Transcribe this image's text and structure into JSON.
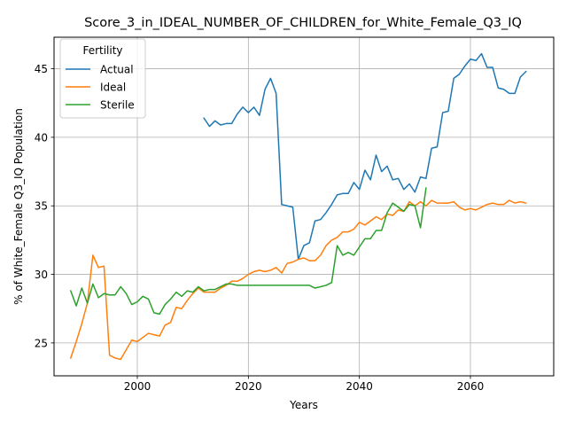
{
  "chart_data": {
    "type": "line",
    "title": "Score_3_in_IDEAL_NUMBER_OF_CHILDREN_for_White_Female_Q3_IQ",
    "xlabel": "Years",
    "ylabel": "% of White_Female Q3_IQ Population",
    "xlim": [
      1985,
      2075
    ],
    "ylim": [
      22.6,
      47.3
    ],
    "x_ticks": [
      2000,
      2020,
      2040,
      2060
    ],
    "y_ticks": [
      25,
      30,
      35,
      40,
      45
    ],
    "grid": true,
    "legend": {
      "title": "Fertility",
      "placement": "top-left"
    },
    "series": [
      {
        "name": "Actual",
        "color": "#1f77b4",
        "points": [
          [
            2012,
            41.4
          ],
          [
            2013,
            40.8
          ],
          [
            2014,
            41.2
          ],
          [
            2015,
            40.9
          ],
          [
            2016,
            41.0
          ],
          [
            2017,
            41.0
          ],
          [
            2018,
            41.7
          ],
          [
            2019,
            42.2
          ],
          [
            2020,
            41.8
          ],
          [
            2021,
            42.2
          ],
          [
            2022,
            41.6
          ],
          [
            2023,
            43.5
          ],
          [
            2024,
            44.3
          ],
          [
            2025,
            43.2
          ],
          [
            2026,
            35.1
          ],
          [
            2027,
            35.0
          ],
          [
            2028,
            34.9
          ],
          [
            2029,
            31.1
          ],
          [
            2030,
            32.1
          ],
          [
            2031,
            32.3
          ],
          [
            2032,
            33.9
          ],
          [
            2033,
            34.0
          ],
          [
            2034,
            34.5
          ],
          [
            2035,
            35.1
          ],
          [
            2036,
            35.8
          ],
          [
            2037,
            35.9
          ],
          [
            2038,
            35.9
          ],
          [
            2039,
            36.7
          ],
          [
            2040,
            36.2
          ],
          [
            2041,
            37.6
          ],
          [
            2042,
            36.9
          ],
          [
            2043,
            38.7
          ],
          [
            2044,
            37.5
          ],
          [
            2045,
            37.9
          ],
          [
            2046,
            36.9
          ],
          [
            2047,
            37.0
          ],
          [
            2048,
            36.2
          ],
          [
            2049,
            36.6
          ],
          [
            2050,
            36.0
          ],
          [
            2051,
            37.1
          ],
          [
            2052,
            37.0
          ],
          [
            2053,
            39.2
          ],
          [
            2054,
            39.3
          ],
          [
            2055,
            41.8
          ],
          [
            2056,
            41.9
          ],
          [
            2057,
            44.3
          ],
          [
            2058,
            44.6
          ],
          [
            2059,
            45.2
          ],
          [
            2060,
            45.7
          ],
          [
            2061,
            45.6
          ],
          [
            2062,
            46.1
          ],
          [
            2063,
            45.1
          ],
          [
            2064,
            45.1
          ],
          [
            2065,
            43.6
          ],
          [
            2066,
            43.5
          ],
          [
            2067,
            43.2
          ],
          [
            2068,
            43.2
          ],
          [
            2069,
            44.4
          ],
          [
            2070,
            44.8
          ]
        ]
      },
      {
        "name": "Ideal",
        "color": "#ff7f0e",
        "points": [
          [
            1988,
            23.9
          ],
          [
            1989,
            25.1
          ],
          [
            1990,
            26.4
          ],
          [
            1991,
            27.9
          ],
          [
            1992,
            31.4
          ],
          [
            1993,
            30.5
          ],
          [
            1994,
            30.6
          ],
          [
            1995,
            24.1
          ],
          [
            1996,
            23.9
          ],
          [
            1997,
            23.8
          ],
          [
            1998,
            24.5
          ],
          [
            1999,
            25.2
          ],
          [
            2000,
            25.1
          ],
          [
            2001,
            25.4
          ],
          [
            2002,
            25.7
          ],
          [
            2003,
            25.6
          ],
          [
            2004,
            25.5
          ],
          [
            2005,
            26.3
          ],
          [
            2006,
            26.5
          ],
          [
            2007,
            27.6
          ],
          [
            2008,
            27.5
          ],
          [
            2009,
            28.1
          ],
          [
            2010,
            28.6
          ],
          [
            2011,
            29.0
          ],
          [
            2012,
            28.7
          ],
          [
            2013,
            28.7
          ],
          [
            2014,
            28.7
          ],
          [
            2015,
            29.0
          ],
          [
            2016,
            29.2
          ],
          [
            2017,
            29.5
          ],
          [
            2018,
            29.5
          ],
          [
            2019,
            29.7
          ],
          [
            2020,
            30.0
          ],
          [
            2021,
            30.2
          ],
          [
            2022,
            30.3
          ],
          [
            2023,
            30.2
          ],
          [
            2024,
            30.3
          ],
          [
            2025,
            30.5
          ],
          [
            2026,
            30.1
          ],
          [
            2027,
            30.8
          ],
          [
            2028,
            30.9
          ],
          [
            2029,
            31.1
          ],
          [
            2030,
            31.2
          ],
          [
            2031,
            31.0
          ],
          [
            2032,
            31.0
          ],
          [
            2033,
            31.4
          ],
          [
            2034,
            32.1
          ],
          [
            2035,
            32.5
          ],
          [
            2036,
            32.7
          ],
          [
            2037,
            33.1
          ],
          [
            2038,
            33.1
          ],
          [
            2039,
            33.3
          ],
          [
            2040,
            33.8
          ],
          [
            2041,
            33.6
          ],
          [
            2042,
            33.9
          ],
          [
            2043,
            34.2
          ],
          [
            2044,
            34.0
          ],
          [
            2045,
            34.4
          ],
          [
            2046,
            34.3
          ],
          [
            2047,
            34.7
          ],
          [
            2048,
            34.6
          ],
          [
            2049,
            35.3
          ],
          [
            2050,
            35.0
          ],
          [
            2051,
            35.3
          ],
          [
            2052,
            35.0
          ],
          [
            2053,
            35.4
          ],
          [
            2054,
            35.2
          ],
          [
            2055,
            35.2
          ],
          [
            2056,
            35.2
          ],
          [
            2057,
            35.3
          ],
          [
            2058,
            34.9
          ],
          [
            2059,
            34.7
          ],
          [
            2060,
            34.8
          ],
          [
            2061,
            34.7
          ],
          [
            2062,
            34.9
          ],
          [
            2063,
            35.1
          ],
          [
            2064,
            35.2
          ],
          [
            2065,
            35.1
          ],
          [
            2066,
            35.1
          ],
          [
            2067,
            35.4
          ],
          [
            2068,
            35.2
          ],
          [
            2069,
            35.3
          ],
          [
            2070,
            35.2
          ]
        ]
      },
      {
        "name": "Sterile",
        "color": "#2ca02c",
        "points": [
          [
            1988,
            28.8
          ],
          [
            1989,
            27.7
          ],
          [
            1990,
            29.0
          ],
          [
            1991,
            27.9
          ],
          [
            1992,
            29.3
          ],
          [
            1993,
            28.3
          ],
          [
            1994,
            28.6
          ],
          [
            1995,
            28.5
          ],
          [
            1996,
            28.5
          ],
          [
            1997,
            29.1
          ],
          [
            1998,
            28.6
          ],
          [
            1999,
            27.8
          ],
          [
            2000,
            28.0
          ],
          [
            2001,
            28.4
          ],
          [
            2002,
            28.2
          ],
          [
            2003,
            27.2
          ],
          [
            2004,
            27.1
          ],
          [
            2005,
            27.8
          ],
          [
            2006,
            28.2
          ],
          [
            2007,
            28.7
          ],
          [
            2008,
            28.4
          ],
          [
            2009,
            28.8
          ],
          [
            2010,
            28.7
          ],
          [
            2011,
            29.1
          ],
          [
            2012,
            28.8
          ],
          [
            2013,
            28.9
          ],
          [
            2014,
            28.9
          ],
          [
            2015,
            29.1
          ],
          [
            2016,
            29.3
          ],
          [
            2017,
            29.3
          ],
          [
            2018,
            29.2
          ],
          [
            2019,
            29.2
          ],
          [
            2020,
            29.2
          ],
          [
            2021,
            29.2
          ],
          [
            2022,
            29.2
          ],
          [
            2023,
            29.2
          ],
          [
            2024,
            29.2
          ],
          [
            2025,
            29.2
          ],
          [
            2026,
            29.2
          ],
          [
            2027,
            29.2
          ],
          [
            2028,
            29.2
          ],
          [
            2029,
            29.2
          ],
          [
            2030,
            29.2
          ],
          [
            2031,
            29.2
          ],
          [
            2032,
            29.0
          ],
          [
            2033,
            29.1
          ],
          [
            2034,
            29.2
          ],
          [
            2035,
            29.4
          ],
          [
            2036,
            32.1
          ],
          [
            2037,
            31.4
          ],
          [
            2038,
            31.6
          ],
          [
            2039,
            31.4
          ],
          [
            2040,
            32.0
          ],
          [
            2041,
            32.6
          ],
          [
            2042,
            32.6
          ],
          [
            2043,
            33.2
          ],
          [
            2044,
            33.2
          ],
          [
            2045,
            34.5
          ],
          [
            2046,
            35.2
          ],
          [
            2047,
            34.9
          ],
          [
            2048,
            34.6
          ],
          [
            2049,
            35.1
          ],
          [
            2050,
            35.0
          ],
          [
            2051,
            33.4
          ],
          [
            2052,
            36.3
          ]
        ]
      }
    ]
  }
}
